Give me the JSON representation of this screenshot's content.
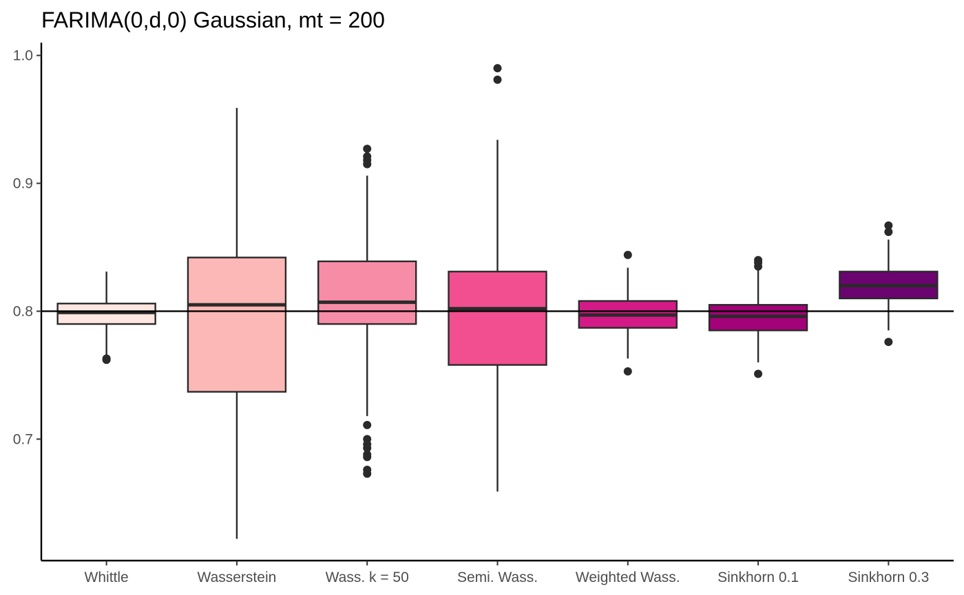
{
  "chart_data": {
    "type": "boxplot",
    "title": "FARIMA(0,d,0) Gaussian, mt = 200",
    "xlabel": "",
    "ylabel": "",
    "ylim": [
      0.605,
      1.01
    ],
    "yticks": [
      0.7,
      0.8,
      0.9,
      1.0
    ],
    "ytick_labels": [
      "0.7",
      "0.8",
      "0.9",
      "1.0"
    ],
    "reference_line": 0.8,
    "grid": false,
    "legend": "none",
    "categories": [
      "Whittle",
      "Wasserstein",
      "Wass. k = 50",
      "Semi. Wass.",
      "Weighted Wass.",
      "Sinkhorn 0.1",
      "Sinkhorn 0.3"
    ],
    "boxes": [
      {
        "name": "Whittle",
        "color": "#FEE6E1",
        "q1": 0.79,
        "median": 0.799,
        "q3": 0.806,
        "whisker_low": 0.764,
        "whisker_high": 0.831,
        "outliers": [
          0.762,
          0.763
        ]
      },
      {
        "name": "Wasserstein",
        "color": "#FBB8B6",
        "q1": 0.737,
        "median": 0.805,
        "q3": 0.842,
        "whisker_low": 0.622,
        "whisker_high": 0.959,
        "outliers": []
      },
      {
        "name": "Wass. k = 50",
        "color": "#F78CA6",
        "q1": 0.79,
        "median": 0.807,
        "q3": 0.839,
        "whisker_low": 0.718,
        "whisker_high": 0.906,
        "outliers": [
          0.673,
          0.676,
          0.686,
          0.688,
          0.693,
          0.696,
          0.7,
          0.711,
          0.915,
          0.918,
          0.921,
          0.927
        ]
      },
      {
        "name": "Semi. Wass.",
        "color": "#F24F90",
        "q1": 0.758,
        "median": 0.802,
        "q3": 0.831,
        "whisker_low": 0.659,
        "whisker_high": 0.934,
        "outliers": [
          0.981,
          0.99
        ]
      },
      {
        "name": "Weighted Wass.",
        "color": "#D41A87",
        "q1": 0.787,
        "median": 0.797,
        "q3": 0.808,
        "whisker_low": 0.763,
        "whisker_high": 0.834,
        "outliers": [
          0.753,
          0.844
        ]
      },
      {
        "name": "Sinkhorn 0.1",
        "color": "#A40279",
        "q1": 0.785,
        "median": 0.796,
        "q3": 0.805,
        "whisker_low": 0.76,
        "whisker_high": 0.832,
        "outliers": [
          0.751,
          0.835,
          0.838,
          0.84
        ]
      },
      {
        "name": "Sinkhorn 0.3",
        "color": "#6B0470",
        "q1": 0.81,
        "median": 0.82,
        "q3": 0.831,
        "whisker_low": 0.785,
        "whisker_high": 0.856,
        "outliers": [
          0.776,
          0.862,
          0.867
        ]
      }
    ]
  }
}
